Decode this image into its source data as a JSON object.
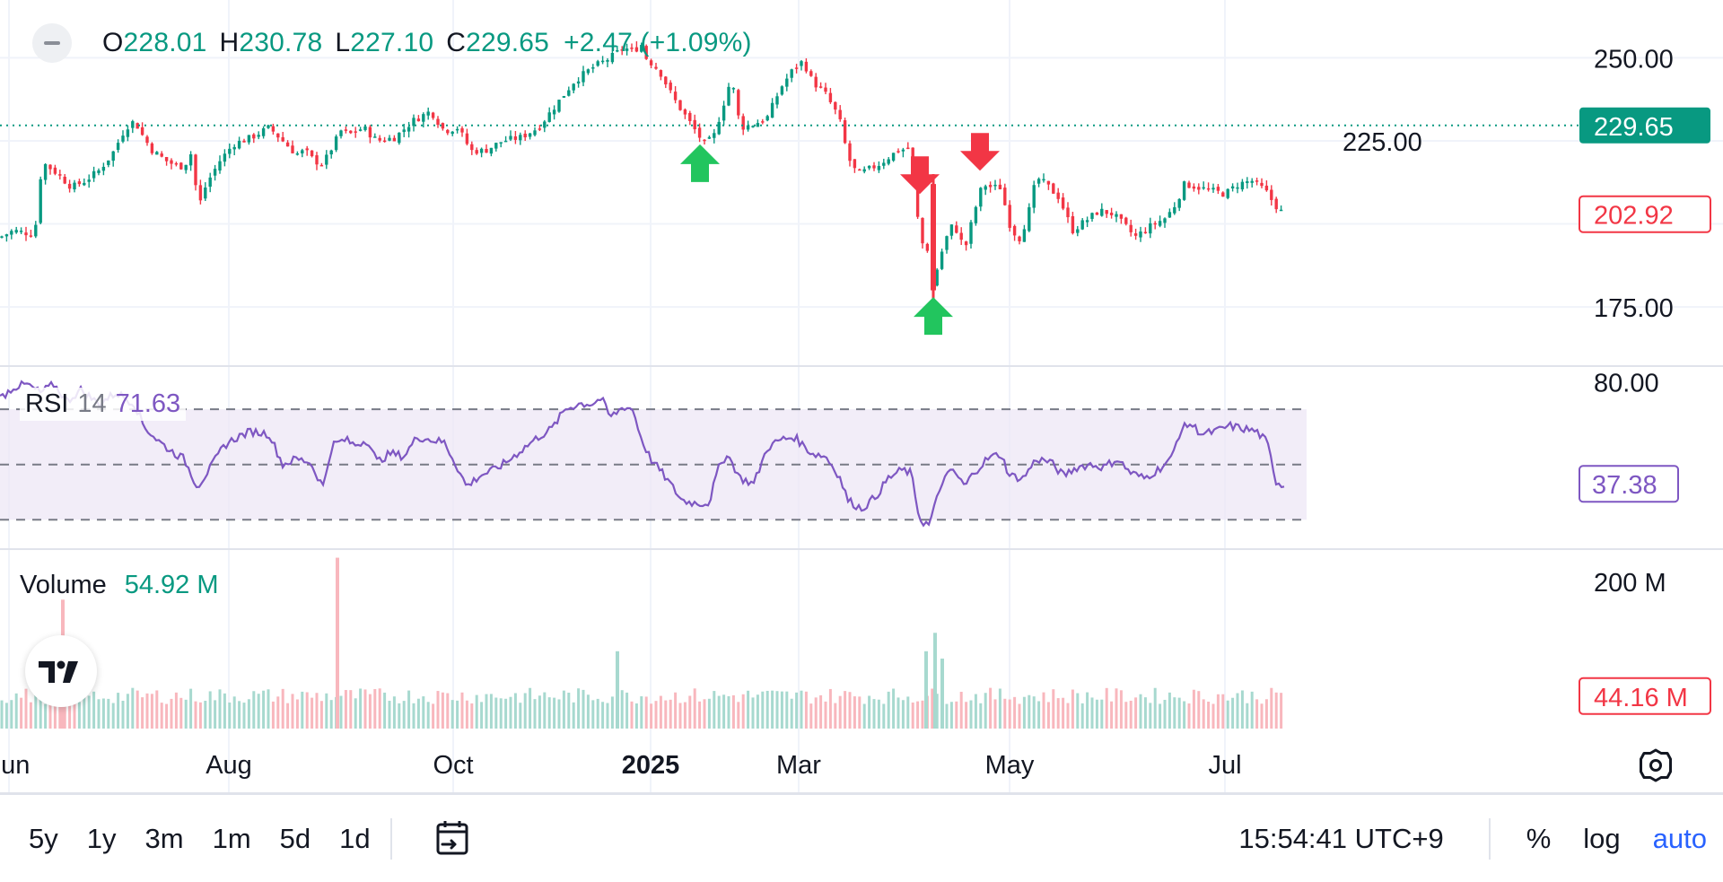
{
  "legend": {
    "o_key": "O",
    "o_val": "228.01",
    "h_key": "H",
    "h_val": "230.78",
    "l_key": "L",
    "l_val": "227.10",
    "c_key": "C",
    "c_val": "229.65",
    "change": "+2.47 (+1.09%)"
  },
  "rsi_legend": {
    "label": "RSI",
    "param": "14",
    "value": "71.63"
  },
  "volume_legend": {
    "label": "Volume",
    "value": "54.92 M"
  },
  "colors": {
    "up": "#089981",
    "down": "#f23645",
    "rsi": "#7e57c2",
    "grid": "#f0f3fa",
    "up_vol": "#a7d9cf",
    "down_vol": "#f8b7bd"
  },
  "toolbar": {
    "ranges": [
      "5y",
      "1y",
      "3m",
      "1m",
      "5d",
      "1d"
    ],
    "date_range_icon": "calendar-arrow-icon",
    "time": "15:54:41 UTC+9",
    "percent": "%",
    "log": "log",
    "auto": "auto"
  },
  "chart_data": {
    "type": "candlestick",
    "price": {
      "ylim": [
        158,
        262
      ],
      "ticks": [
        175.0,
        250.0
      ],
      "tick_labels": [
        "250.00",
        "175.00"
      ],
      "partial_tick_label": "225.00",
      "last_price_label": "229.65",
      "last_price": 229.65,
      "secondary_label": "202.92",
      "secondary_price": 202.92,
      "x_labels": [
        "Jun",
        "Aug",
        "Oct",
        "2025",
        "Mar",
        "May",
        "Jul"
      ],
      "close_path": [
        [
          0,
          196
        ],
        [
          15,
          198
        ],
        [
          35,
          197
        ],
        [
          40,
          200
        ],
        [
          45,
          214
        ],
        [
          50,
          218
        ],
        [
          60,
          216
        ],
        [
          80,
          211
        ],
        [
          95,
          213
        ],
        [
          110,
          216
        ],
        [
          125,
          221
        ],
        [
          140,
          229
        ],
        [
          150,
          231
        ],
        [
          160,
          226
        ],
        [
          170,
          222
        ],
        [
          185,
          219
        ],
        [
          200,
          217
        ],
        [
          210,
          219
        ],
        [
          215,
          223
        ],
        [
          220,
          204
        ],
        [
          230,
          212
        ],
        [
          245,
          219
        ],
        [
          260,
          224
        ],
        [
          280,
          226
        ],
        [
          300,
          229
        ],
        [
          315,
          225
        ],
        [
          330,
          221
        ],
        [
          340,
          222
        ],
        [
          350,
          219
        ],
        [
          360,
          218
        ],
        [
          370,
          223
        ],
        [
          380,
          228
        ],
        [
          390,
          227
        ],
        [
          405,
          229
        ],
        [
          420,
          225
        ],
        [
          440,
          226
        ],
        [
          460,
          231
        ],
        [
          480,
          234
        ],
        [
          495,
          228
        ],
        [
          510,
          229
        ],
        [
          525,
          222
        ],
        [
          540,
          222
        ],
        [
          560,
          225
        ],
        [
          580,
          226
        ],
        [
          600,
          229
        ],
        [
          620,
          236
        ],
        [
          640,
          243
        ],
        [
          660,
          247
        ],
        [
          680,
          250
        ],
        [
          695,
          253
        ],
        [
          705,
          252
        ],
        [
          715,
          254
        ],
        [
          720,
          250
        ],
        [
          735,
          246
        ],
        [
          750,
          238
        ],
        [
          765,
          232
        ],
        [
          775,
          228
        ],
        [
          785,
          224
        ],
        [
          795,
          226
        ],
        [
          805,
          235
        ],
        [
          815,
          244
        ],
        [
          825,
          229
        ],
        [
          840,
          230
        ],
        [
          855,
          232
        ],
        [
          870,
          241
        ],
        [
          885,
          247
        ],
        [
          895,
          249
        ],
        [
          905,
          243
        ],
        [
          920,
          239
        ],
        [
          935,
          232
        ],
        [
          945,
          220
        ],
        [
          955,
          215
        ],
        [
          965,
          216
        ],
        [
          980,
          218
        ],
        [
          990,
          220
        ],
        [
          1000,
          222
        ],
        [
          1015,
          223
        ],
        [
          1025,
          195
        ],
        [
          1035,
          192
        ],
        [
          1040,
          178
        ],
        [
          1045,
          188
        ],
        [
          1055,
          196
        ],
        [
          1062,
          200
        ],
        [
          1068,
          197
        ],
        [
          1075,
          192
        ],
        [
          1085,
          203
        ],
        [
          1095,
          212
        ],
        [
          1105,
          211
        ],
        [
          1115,
          211
        ],
        [
          1125,
          200
        ],
        [
          1135,
          195
        ],
        [
          1145,
          202
        ],
        [
          1155,
          214
        ],
        [
          1165,
          212
        ],
        [
          1180,
          208
        ],
        [
          1195,
          198
        ],
        [
          1210,
          201
        ],
        [
          1225,
          204
        ],
        [
          1240,
          203
        ],
        [
          1255,
          199
        ],
        [
          1265,
          196
        ],
        [
          1280,
          199
        ],
        [
          1300,
          202
        ],
        [
          1310,
          206
        ],
        [
          1320,
          212
        ],
        [
          1335,
          211
        ],
        [
          1350,
          210
        ],
        [
          1365,
          209
        ],
        [
          1380,
          212
        ],
        [
          1395,
          213
        ],
        [
          1410,
          210
        ],
        [
          1420,
          206
        ],
        [
          1430,
          203
        ]
      ],
      "signals": [
        {
          "type": "buy",
          "x_day": 780,
          "price": 218
        },
        {
          "type": "sell",
          "x_day": 1025,
          "price": 209
        },
        {
          "type": "buy",
          "x_day": 1040,
          "price": 172
        },
        {
          "type": "sell",
          "x_day": 1092,
          "price": 216
        }
      ]
    },
    "rsi": {
      "period": 14,
      "ylim": [
        20,
        85
      ],
      "upper": 70,
      "mid": 50,
      "lower": 30,
      "tick_label": "80.00",
      "last_value_label": "37.38",
      "path": [
        [
          0,
          74
        ],
        [
          15,
          78
        ],
        [
          30,
          79
        ],
        [
          45,
          76
        ],
        [
          60,
          79
        ],
        [
          75,
          73
        ],
        [
          90,
          77
        ],
        [
          110,
          72
        ],
        [
          130,
          76
        ],
        [
          150,
          72
        ],
        [
          160,
          64
        ],
        [
          175,
          59
        ],
        [
          190,
          55
        ],
        [
          205,
          52
        ],
        [
          220,
          42
        ],
        [
          235,
          49
        ],
        [
          250,
          57
        ],
        [
          265,
          60
        ],
        [
          280,
          62
        ],
        [
          300,
          61
        ],
        [
          315,
          50
        ],
        [
          330,
          52
        ],
        [
          345,
          51
        ],
        [
          360,
          42
        ],
        [
          370,
          57
        ],
        [
          385,
          59
        ],
        [
          395,
          57
        ],
        [
          410,
          59
        ],
        [
          420,
          51
        ],
        [
          435,
          54
        ],
        [
          450,
          53
        ],
        [
          465,
          60
        ],
        [
          480,
          59
        ],
        [
          495,
          58
        ],
        [
          505,
          52
        ],
        [
          520,
          42
        ],
        [
          535,
          46
        ],
        [
          550,
          48
        ],
        [
          565,
          51
        ],
        [
          580,
          55
        ],
        [
          600,
          60
        ],
        [
          615,
          63
        ],
        [
          630,
          70
        ],
        [
          645,
          72
        ],
        [
          660,
          72
        ],
        [
          670,
          74
        ],
        [
          680,
          67
        ],
        [
          695,
          71
        ],
        [
          705,
          70
        ],
        [
          715,
          59
        ],
        [
          725,
          52
        ],
        [
          740,
          46
        ],
        [
          760,
          37
        ],
        [
          775,
          36
        ],
        [
          790,
          36
        ],
        [
          800,
          48
        ],
        [
          810,
          54
        ],
        [
          825,
          45
        ],
        [
          840,
          43
        ],
        [
          855,
          56
        ],
        [
          870,
          59
        ],
        [
          885,
          60
        ],
        [
          895,
          57
        ],
        [
          905,
          54
        ],
        [
          920,
          53
        ],
        [
          935,
          46
        ],
        [
          945,
          37
        ],
        [
          960,
          34
        ],
        [
          975,
          38
        ],
        [
          990,
          45
        ],
        [
          1005,
          48
        ],
        [
          1015,
          47
        ],
        [
          1025,
          30
        ],
        [
          1035,
          28
        ],
        [
          1040,
          33
        ],
        [
          1050,
          44
        ],
        [
          1062,
          48
        ],
        [
          1075,
          42
        ],
        [
          1085,
          47
        ],
        [
          1100,
          52
        ],
        [
          1115,
          54
        ],
        [
          1125,
          46
        ],
        [
          1140,
          45
        ],
        [
          1155,
          52
        ],
        [
          1170,
          51
        ],
        [
          1185,
          46
        ],
        [
          1200,
          49
        ],
        [
          1215,
          50
        ],
        [
          1230,
          49
        ],
        [
          1245,
          52
        ],
        [
          1260,
          47
        ],
        [
          1275,
          45
        ],
        [
          1290,
          48
        ],
        [
          1305,
          52
        ],
        [
          1315,
          62
        ],
        [
          1325,
          65
        ],
        [
          1340,
          61
        ],
        [
          1355,
          62
        ],
        [
          1370,
          64
        ],
        [
          1385,
          63
        ],
        [
          1400,
          62
        ],
        [
          1412,
          58
        ],
        [
          1422,
          44
        ],
        [
          1432,
          42
        ]
      ]
    },
    "volume": {
      "ylim": [
        0,
        240
      ],
      "tick_label": "200 M",
      "last_value_label": "44.16 M",
      "last_value": 44.16,
      "spikes": [
        {
          "x_day": 70,
          "value": 175,
          "dir": "down"
        },
        {
          "x_day": 376,
          "value": 232,
          "dir": "down"
        },
        {
          "x_day": 688,
          "value": 105,
          "dir": "up"
        },
        {
          "x_day": 1032,
          "value": 105,
          "dir": "up"
        },
        {
          "x_day": 1042,
          "value": 130,
          "dir": "up"
        },
        {
          "x_day": 1050,
          "value": 95,
          "dir": "up"
        }
      ],
      "base_level": 40
    }
  }
}
